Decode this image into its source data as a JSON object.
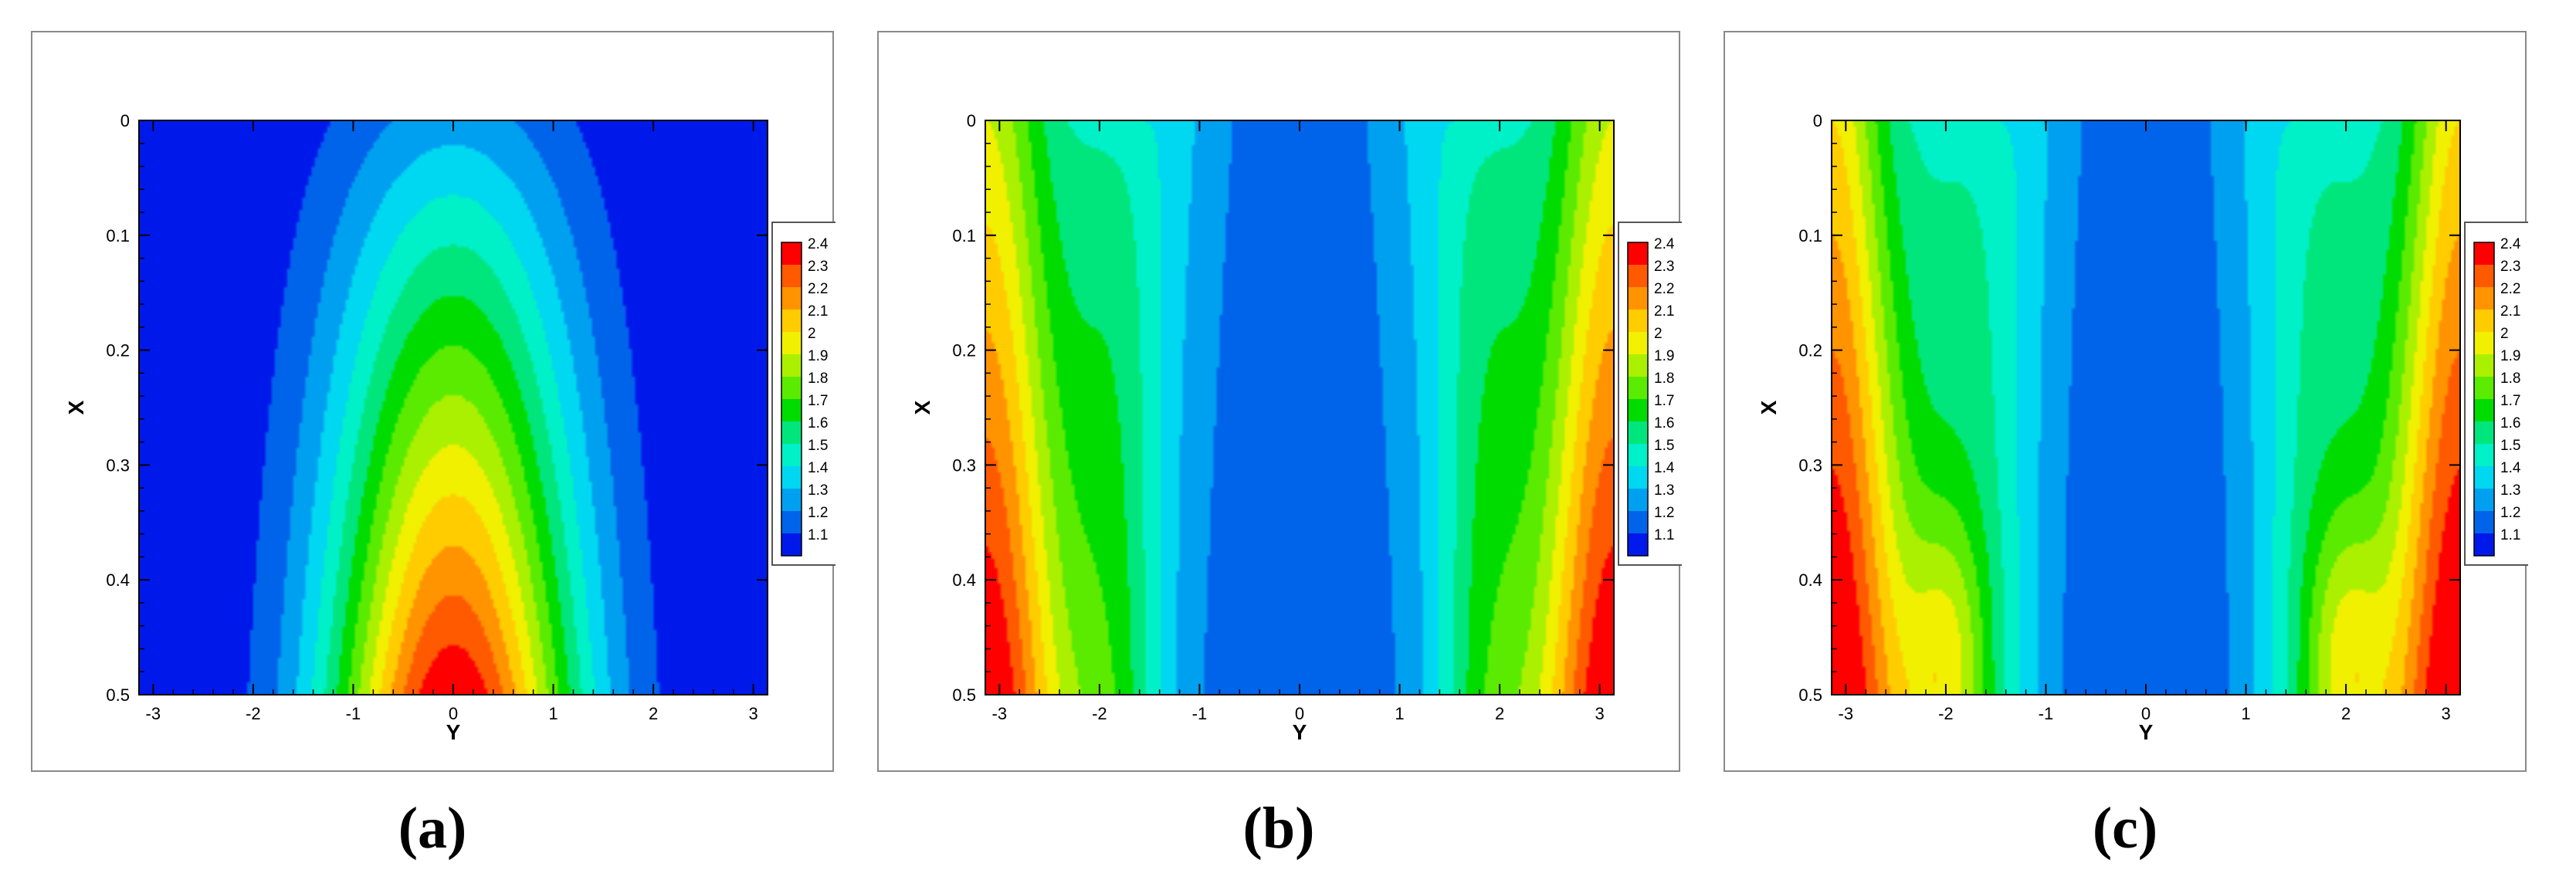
{
  "chart_data": [
    {
      "type": "heatmap",
      "caption": "(a)",
      "xlabel": "Y",
      "ylabel": "X",
      "xlim": [
        -3.14159,
        3.14159
      ],
      "ylim": [
        0,
        0.5
      ],
      "y_inverted": true,
      "xticks": [
        -3,
        -2,
        -1,
        0,
        1,
        2,
        3
      ],
      "yticks": [
        0,
        0.1,
        0.2,
        0.3,
        0.4,
        0.5
      ],
      "ytick_labels": [
        "0",
        "0.1",
        "0.2",
        "0.3",
        "0.4",
        "0.5"
      ],
      "legend_position": "right",
      "legend_levels": [
        "2.4",
        "2.3",
        "2.2",
        "2.1",
        "2",
        "1.9",
        "1.8",
        "1.7",
        "1.6",
        "1.5",
        "1.4",
        "1.3",
        "1.2",
        "1.1"
      ],
      "legend_colors": [
        "#ff0000",
        "#ff5a00",
        "#ff9300",
        "#ffcc00",
        "#f0f000",
        "#aaf000",
        "#5aeb00",
        "#00dc00",
        "#00e67d",
        "#00f0c8",
        "#00d7f0",
        "#00a0f0",
        "#0064eb",
        "#0019eb"
      ]
    },
    {
      "type": "heatmap",
      "caption": "(b)",
      "xlabel": "Y",
      "ylabel": "X",
      "xlim": [
        -3.14159,
        3.14159
      ],
      "ylim": [
        0,
        0.5
      ],
      "y_inverted": true,
      "xticks": [
        -3,
        -2,
        -1,
        0,
        1,
        2,
        3
      ],
      "yticks": [
        0,
        0.1,
        0.2,
        0.3,
        0.4,
        0.5
      ],
      "ytick_labels": [
        "0",
        "0.1",
        "0.2",
        "0.3",
        "0.4",
        "0.5"
      ],
      "legend_position": "right",
      "legend_levels": [
        "2.4",
        "2.3",
        "2.2",
        "2.1",
        "2",
        "1.9",
        "1.8",
        "1.7",
        "1.6",
        "1.5",
        "1.4",
        "1.3",
        "1.2",
        "1.1"
      ],
      "legend_colors": [
        "#ff0000",
        "#ff5a00",
        "#ff9300",
        "#ffcc00",
        "#f0f000",
        "#aaf000",
        "#5aeb00",
        "#00dc00",
        "#00e67d",
        "#00f0c8",
        "#00d7f0",
        "#00a0f0",
        "#0064eb",
        "#0019eb"
      ]
    },
    {
      "type": "heatmap",
      "caption": "(c)",
      "xlabel": "Y",
      "ylabel": "X",
      "xlim": [
        -3.14159,
        3.14159
      ],
      "ylim": [
        0,
        0.5
      ],
      "y_inverted": true,
      "xticks": [
        -3,
        -2,
        -1,
        0,
        1,
        2,
        3
      ],
      "yticks": [
        0,
        0.1,
        0.2,
        0.3,
        0.4,
        0.5
      ],
      "ytick_labels": [
        "0",
        "0.1",
        "0.2",
        "0.3",
        "0.4",
        "0.5"
      ],
      "legend_position": "right",
      "legend_levels": [
        "2.4",
        "2.3",
        "2.2",
        "2.1",
        "2",
        "1.9",
        "1.8",
        "1.7",
        "1.6",
        "1.5",
        "1.4",
        "1.3",
        "1.2",
        "1.1"
      ],
      "legend_colors": [
        "#ff0000",
        "#ff5a00",
        "#ff9300",
        "#ffcc00",
        "#f0f000",
        "#aaf000",
        "#5aeb00",
        "#00dc00",
        "#00e67d",
        "#00f0c8",
        "#00d7f0",
        "#00a0f0",
        "#0064eb",
        "#0019eb"
      ]
    }
  ]
}
